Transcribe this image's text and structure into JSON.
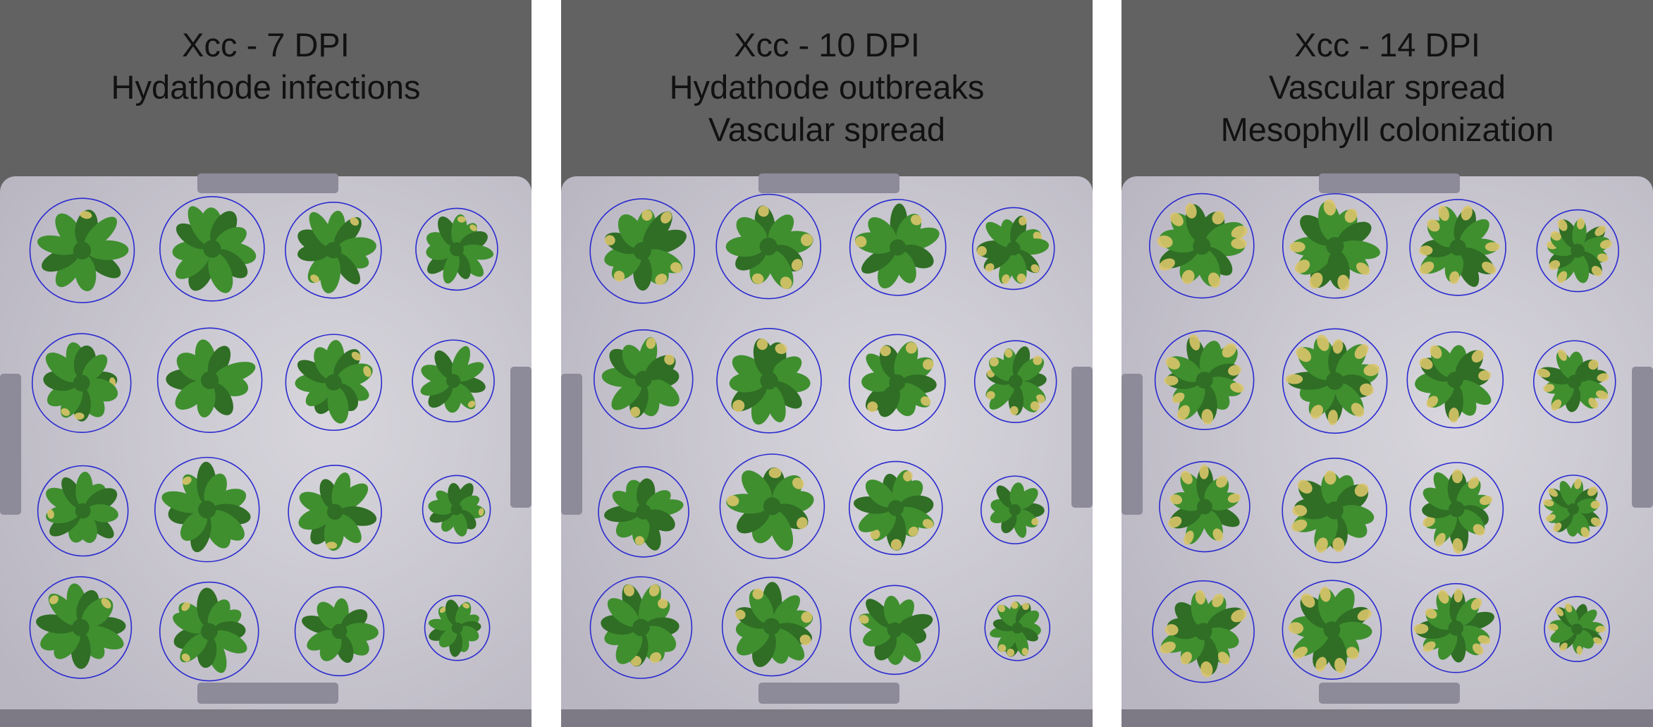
{
  "figure": {
    "panels": [
      {
        "title_lines": [
          "Xcc - 7 DPI",
          "Hydathode infections"
        ],
        "lesion_level": 0.15
      },
      {
        "title_lines": [
          "Xcc - 10 DPI",
          "Hydathode outbreaks",
          "Vascular spread"
        ],
        "lesion_level": 0.45
      },
      {
        "title_lines": [
          "Xcc - 14 DPI",
          "Vascular spread",
          "Mesophyll colonization"
        ],
        "lesion_level": 0.8
      }
    ],
    "grid": {
      "rows": 4,
      "cols": 4
    },
    "colors": {
      "panel_header": "#626262",
      "tray": "#b9b6c2",
      "tray_light": "#d8d6dc",
      "tray_rim": "#8d8a99",
      "circle": "#2a2ad0",
      "leaf": "#3f8f2f",
      "leaf_dark": "#2f6e24",
      "lesion": "#d9c46a",
      "background": "#ffffff"
    }
  }
}
